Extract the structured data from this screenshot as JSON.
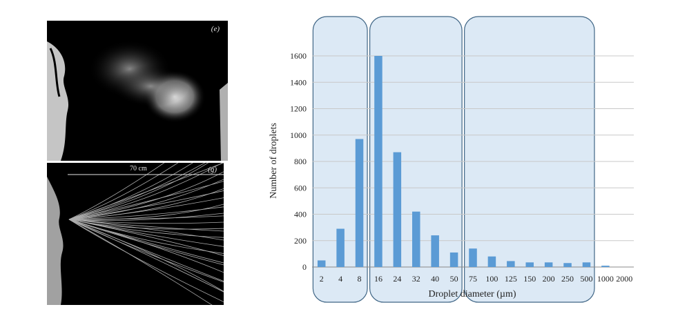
{
  "photos": {
    "top": {
      "label": "(e)"
    },
    "bottom": {
      "label": "(g)",
      "scale_text": "70 cm"
    }
  },
  "chart_data": {
    "type": "bar",
    "categories": [
      "2",
      "4",
      "8",
      "16",
      "24",
      "32",
      "40",
      "50",
      "75",
      "100",
      "125",
      "150",
      "200",
      "250",
      "500",
      "1000",
      "2000"
    ],
    "values": [
      50,
      290,
      970,
      1600,
      870,
      420,
      240,
      110,
      140,
      80,
      45,
      35,
      35,
      30,
      35,
      10,
      0
    ],
    "xlabel": "Droplet diameter (µm)",
    "ylabel": "Number of droplets",
    "ylim": [
      0,
      1600
    ],
    "yticks": [
      0,
      200,
      400,
      600,
      800,
      1000,
      1200,
      1400,
      1600
    ],
    "grid": true,
    "groups": [
      {
        "from": "2",
        "to": "8"
      },
      {
        "from": "16",
        "to": "50"
      },
      {
        "from": "75",
        "to": "500"
      }
    ],
    "colors": {
      "bar": "#5b9bd5",
      "group_fill": "#dce9f5",
      "group_stroke": "#3f6585",
      "grid": "#c8c8c8"
    }
  }
}
